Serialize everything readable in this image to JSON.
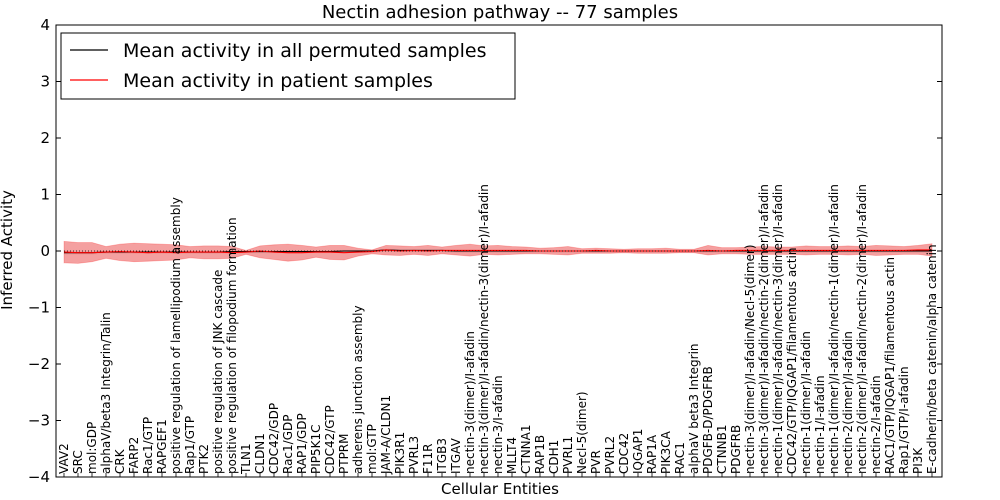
{
  "chart_data": {
    "type": "line",
    "title": "Nectin adhesion pathway -- 77 samples",
    "xlabel": "Cellular Entities",
    "ylabel": "Inferred Activity",
    "ylim": [
      -4,
      4
    ],
    "yticks": [
      -4,
      -3,
      -2,
      -1,
      0,
      1,
      2,
      3,
      4
    ],
    "ytick_labels": [
      "−4",
      "−3",
      "−2",
      "−1",
      "0",
      "1",
      "2",
      "3",
      "4"
    ],
    "grid": false,
    "legend_position": "top-left",
    "categories": [
      "VAV2",
      "SRC",
      "mol:GDP",
      "alphaV/beta3 Integrin/Talin",
      "CRK",
      "FARP2",
      "Rac1/GTP",
      "RAPGEF1",
      "positive regulation of lamellipodium assembly",
      "Rap1/GTP",
      "PTK2",
      "positive regulation of JNK cascade",
      "positive regulation of filopodium formation",
      "TLN1",
      "CLDN1",
      "CDC42/GDP",
      "Rac1/GDP",
      "RAP1/GDP",
      "PIP5K1C",
      "CDC42/GTP",
      "PTPRM",
      "adherens junction assembly",
      "mol:GTP",
      "JAM-A/CLDN1",
      "PIK3R1",
      "PVRL3",
      "F11R",
      "ITGB3",
      "ITGAV",
      "nectin-3(dimer)/I-afadin",
      "nectin-3(dimer)/I-afadin/nectin-3(dimer)/I-afadin",
      "nectin-3/I-afadin",
      "MLLT4",
      "CTNNA1",
      "RAP1B",
      "CDH1",
      "PVRL1",
      "Necl-5(dimer)",
      "PVR",
      "PVRL2",
      "CDC42",
      "IQGAP1",
      "RAP1A",
      "PIK3CA",
      "RAC1",
      "alphaV beta3 Integrin",
      "PDGFB-D/PDGFRB",
      "CTNNB1",
      "PDGFRB",
      "nectin-3(dimer)/I-afadin/Necl-5(dimer)",
      "nectin-3(dimer)/I-afadin/nectin-2(dimer)/I-afadin",
      "nectin-1(dimer)/I-afadin/nectin-3(dimer)/I-afadin",
      "CDC42/GTP/IQGAP1/filamentous actin",
      "nectin-1(dimer)/I-afadin",
      "nectin-1/I-afadin",
      "nectin-1(dimer)/I-afadin/nectin-1(dimer)/I-afadin",
      "nectin-2(dimer)/I-afadin",
      "nectin-2(dimer)/I-afadin/nectin-2(dimer)/I-afadin",
      "nectin-2/I-afadin",
      "RAC1/GTP/IQGAP1/filamentous actin",
      "Rap1/GTP/I-afadin",
      "PI3K",
      "E-cadherin/beta catenin/alpha catenin"
    ],
    "series": [
      {
        "name": "Mean activity in all permuted samples",
        "color": "#000000",
        "values": [
          -0.03,
          -0.03,
          -0.03,
          -0.02,
          -0.02,
          -0.02,
          -0.02,
          -0.02,
          -0.02,
          -0.02,
          -0.02,
          -0.02,
          -0.01,
          -0.01,
          -0.01,
          -0.01,
          -0.01,
          -0.01,
          -0.01,
          -0.01,
          0.0,
          0.0,
          0.0,
          0.02,
          0.01,
          0.01,
          0.01,
          0.01,
          0.0,
          0.0,
          0.0,
          0.0,
          0.0,
          0.0,
          0.0,
          0.0,
          0.0,
          0.0,
          0.0,
          0.0,
          0.0,
          0.0,
          0.0,
          0.0,
          0.0,
          0.0,
          0.0,
          0.0,
          0.0,
          0.0,
          0.0,
          0.0,
          0.0,
          0.0,
          0.0,
          0.0,
          0.0,
          0.0,
          0.0,
          0.0,
          0.0,
          0.0,
          0.0
        ],
        "band_upper": [
          -0.01,
          -0.01,
          -0.01,
          0.0,
          0.0,
          0.0,
          0.0,
          0.0,
          0.0,
          0.0,
          0.0,
          0.0,
          0.01,
          0.01,
          0.01,
          0.01,
          0.01,
          0.01,
          0.01,
          0.01,
          0.02,
          0.02,
          0.02,
          0.04,
          0.03,
          0.03,
          0.03,
          0.03,
          0.02,
          0.02,
          0.02,
          0.02,
          0.02,
          0.02,
          0.02,
          0.02,
          0.02,
          0.02,
          0.02,
          0.02,
          0.02,
          0.02,
          0.02,
          0.02,
          0.02,
          0.02,
          0.02,
          0.02,
          0.02,
          0.02,
          0.02,
          0.02,
          0.02,
          0.02,
          0.02,
          0.02,
          0.02,
          0.02,
          0.02,
          0.02,
          0.02,
          0.02,
          0.02
        ],
        "band_lower": [
          -0.06,
          -0.06,
          -0.06,
          -0.05,
          -0.05,
          -0.05,
          -0.05,
          -0.05,
          -0.05,
          -0.05,
          -0.05,
          -0.05,
          -0.04,
          -0.04,
          -0.04,
          -0.04,
          -0.04,
          -0.04,
          -0.04,
          -0.04,
          -0.03,
          -0.03,
          -0.03,
          -0.01,
          -0.02,
          -0.02,
          -0.02,
          -0.02,
          -0.03,
          -0.03,
          -0.03,
          -0.03,
          -0.03,
          -0.03,
          -0.03,
          -0.03,
          -0.03,
          -0.03,
          -0.03,
          -0.03,
          -0.03,
          -0.03,
          -0.03,
          -0.03,
          -0.03,
          -0.03,
          -0.03,
          -0.03,
          -0.03,
          -0.03,
          -0.03,
          -0.03,
          -0.03,
          -0.03,
          -0.03,
          -0.03,
          -0.03,
          -0.03,
          -0.03,
          -0.03,
          -0.03,
          -0.03,
          -0.03
        ]
      },
      {
        "name": "Mean activity in patient samples",
        "color": "#ff0000",
        "band_color": "#f08080",
        "values": [
          -0.02,
          -0.03,
          -0.03,
          -0.02,
          -0.01,
          -0.02,
          -0.03,
          -0.02,
          -0.03,
          -0.02,
          -0.02,
          -0.02,
          -0.03,
          -0.02,
          0.0,
          -0.02,
          -0.03,
          -0.03,
          -0.02,
          -0.02,
          -0.03,
          -0.02,
          -0.01,
          0.02,
          0.0,
          0.01,
          0.0,
          0.01,
          0.01,
          0.01,
          0.01,
          0.01,
          0.01,
          0.01,
          0.0,
          0.0,
          0.0,
          0.0,
          0.01,
          0.0,
          0.0,
          0.0,
          0.0,
          0.0,
          0.0,
          0.0,
          0.01,
          0.0,
          0.01,
          0.01,
          0.01,
          0.01,
          0.01,
          0.01,
          0.01,
          0.01,
          0.01,
          0.01,
          0.01,
          0.01,
          0.01,
          0.02,
          0.02
        ],
        "band_upper": [
          0.17,
          0.15,
          0.15,
          0.08,
          0.12,
          0.14,
          0.13,
          0.12,
          0.11,
          0.08,
          0.09,
          0.09,
          0.08,
          0.01,
          0.09,
          0.11,
          0.12,
          0.1,
          0.07,
          0.1,
          0.1,
          0.05,
          0.02,
          0.1,
          0.09,
          0.08,
          0.1,
          0.07,
          0.1,
          0.12,
          0.09,
          0.1,
          0.08,
          0.07,
          0.05,
          0.06,
          0.08,
          0.04,
          0.05,
          0.04,
          0.03,
          0.04,
          0.04,
          0.05,
          0.03,
          0.03,
          0.1,
          0.06,
          0.06,
          0.07,
          0.08,
          0.07,
          0.07,
          0.09,
          0.08,
          0.08,
          0.09,
          0.08,
          0.1,
          0.09,
          0.08,
          0.1,
          0.13
        ],
        "band_lower": [
          -0.21,
          -0.22,
          -0.19,
          -0.13,
          -0.17,
          -0.19,
          -0.18,
          -0.17,
          -0.16,
          -0.12,
          -0.14,
          -0.14,
          -0.13,
          -0.06,
          -0.12,
          -0.15,
          -0.18,
          -0.16,
          -0.11,
          -0.15,
          -0.16,
          -0.09,
          -0.05,
          -0.07,
          -0.08,
          -0.06,
          -0.08,
          -0.05,
          -0.07,
          -0.09,
          -0.06,
          -0.07,
          -0.06,
          -0.05,
          -0.05,
          -0.06,
          -0.07,
          -0.04,
          -0.04,
          -0.04,
          -0.03,
          -0.04,
          -0.04,
          -0.04,
          -0.03,
          -0.03,
          -0.07,
          -0.05,
          -0.05,
          -0.06,
          -0.06,
          -0.06,
          -0.06,
          -0.07,
          -0.06,
          -0.06,
          -0.07,
          -0.06,
          -0.08,
          -0.07,
          -0.06,
          -0.06,
          -0.09
        ]
      }
    ]
  }
}
